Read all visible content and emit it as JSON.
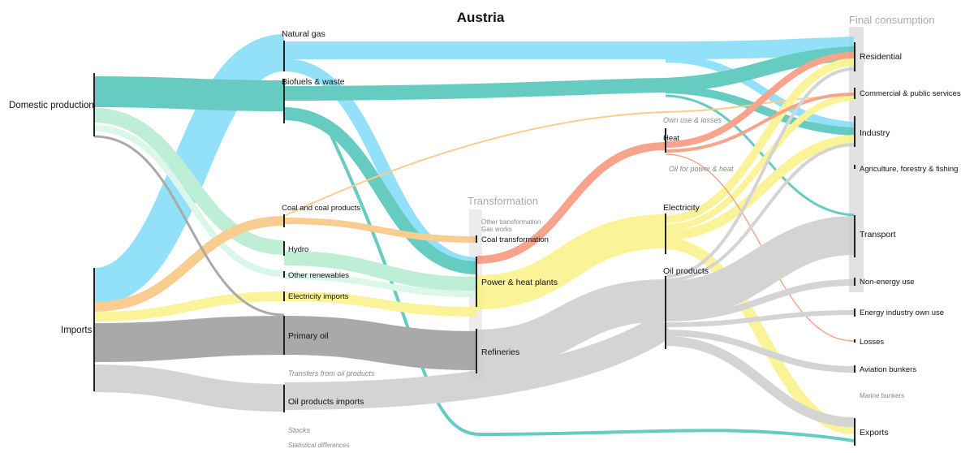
{
  "title": "Austria",
  "groups": {
    "transformation": "Transformation",
    "final_consumption": "Final consumption"
  },
  "nodes": {
    "domestic_production": "Domestic production",
    "imports": "Imports",
    "natural_gas": "Natural gas",
    "biofuels_waste": "Biofuels & waste",
    "coal": "Coal and coal products",
    "hydro": "Hydro",
    "other_renewables": "Other renewables",
    "electricity_imports": "Electricity imports",
    "primary_oil": "Primary oil",
    "transfers": "Transfers from oil products",
    "oil_products_imports": "Oil products imports",
    "stocks": "Stocks",
    "statistical_differences": "Statistical differences",
    "other_transformation": "Other transformation",
    "gas_works": "Gas works",
    "coal_transformation": "Coal transformation",
    "power_heat": "Power & heat plants",
    "refineries": "Refineries",
    "own_use_losses": "Own use & losses",
    "heat": "Heat",
    "oil_power_heat": "Oil for power & heat",
    "electricity": "Electricity",
    "oil_products": "Oil products",
    "residential": "Residential",
    "commercial": "Commercial & public services",
    "industry": "Industry",
    "agriculture": "Agriculture, forestry & fishing",
    "transport": "Transport",
    "non_energy": "Non-energy use",
    "energy_own_use": "Energy industry own use",
    "losses": "Losses",
    "aviation": "Aviation bunkers",
    "marine": "Marine bunkers",
    "exports": "Exports"
  },
  "colors": {
    "gas": "#7fdcf7",
    "biofuels": "#4cc3b6",
    "coal": "#f9c47c",
    "hydro": "#b4eccf",
    "renewables": "#d5f6e6",
    "electricity": "#faf287",
    "primary_oil": "#9b9b9b",
    "oil_products": "#cdcdcd",
    "heat": "#f79379",
    "final_band": "#e4e4e4"
  }
}
